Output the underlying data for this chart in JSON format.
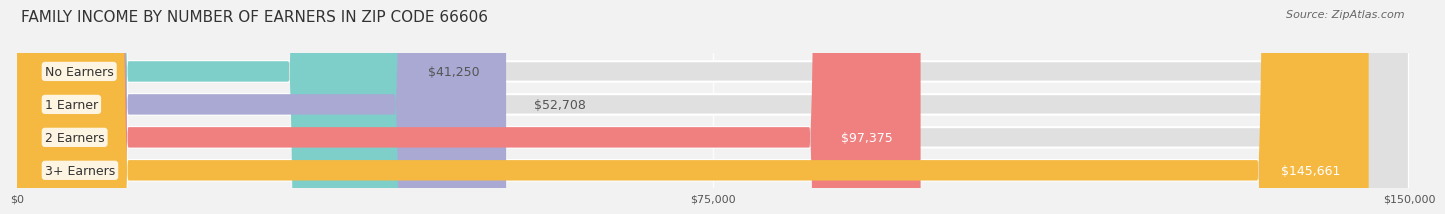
{
  "title": "FAMILY INCOME BY NUMBER OF EARNERS IN ZIP CODE 66606",
  "source": "Source: ZipAtlas.com",
  "categories": [
    "No Earners",
    "1 Earner",
    "2 Earners",
    "3+ Earners"
  ],
  "values": [
    41250,
    52708,
    97375,
    145661
  ],
  "bar_colors": [
    "#7ececa",
    "#a9a9d4",
    "#f08080",
    "#f5b942"
  ],
  "label_colors": [
    "#333333",
    "#333333",
    "#ffffff",
    "#ffffff"
  ],
  "value_labels": [
    "$41,250",
    "$52,708",
    "$97,375",
    "$145,661"
  ],
  "xlim": [
    0,
    150000
  ],
  "xticks": [
    0,
    75000,
    150000
  ],
  "xtick_labels": [
    "$0",
    "$75,000",
    "$150,000"
  ],
  "background_color": "#f2f2f2",
  "bar_bg_color": "#e0e0e0",
  "title_fontsize": 11,
  "source_fontsize": 8,
  "label_fontsize": 9,
  "value_fontsize": 9
}
